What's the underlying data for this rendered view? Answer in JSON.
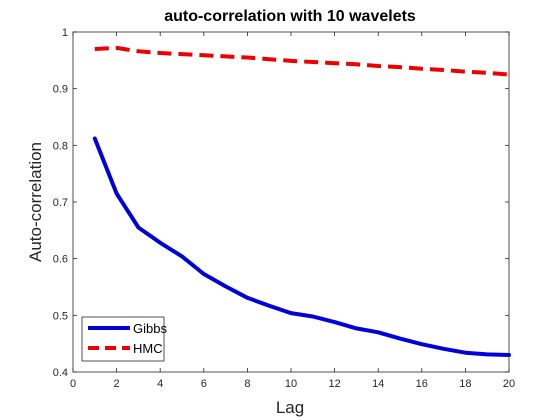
{
  "chart_data": {
    "type": "line",
    "title": "auto-correlation with 10 wavelets",
    "xlabel": "Lag",
    "ylabel": "Auto-correlation",
    "xlim": [
      0,
      20
    ],
    "ylim": [
      0.4,
      1
    ],
    "xticks": [
      0,
      2,
      4,
      6,
      8,
      10,
      12,
      14,
      16,
      18,
      20
    ],
    "yticks": [
      0.4,
      0.5,
      0.6,
      0.7,
      0.8,
      0.9,
      1
    ],
    "ytick_labels": [
      "0.4",
      "0.5",
      "0.6",
      "0.7",
      "0.8",
      "0.9",
      "1"
    ],
    "grid": false,
    "legend_position": "bottom-left",
    "x": [
      1,
      2,
      3,
      4,
      5,
      6,
      7,
      8,
      9,
      10,
      11,
      12,
      13,
      14,
      15,
      16,
      17,
      18,
      19,
      20
    ],
    "series": [
      {
        "name": "Gibbs",
        "color": "#0000dd",
        "style": "solid",
        "values": [
          0.812,
          0.715,
          0.655,
          0.628,
          0.604,
          0.573,
          0.551,
          0.531,
          0.517,
          0.504,
          0.498,
          0.488,
          0.477,
          0.47,
          0.459,
          0.449,
          0.441,
          0.434,
          0.431,
          0.43
        ]
      },
      {
        "name": "HMC",
        "color": "#ee0000",
        "style": "dashed",
        "values": [
          0.97,
          0.972,
          0.966,
          0.963,
          0.961,
          0.959,
          0.957,
          0.955,
          0.952,
          0.949,
          0.947,
          0.945,
          0.943,
          0.94,
          0.938,
          0.935,
          0.933,
          0.93,
          0.928,
          0.925
        ]
      }
    ]
  }
}
